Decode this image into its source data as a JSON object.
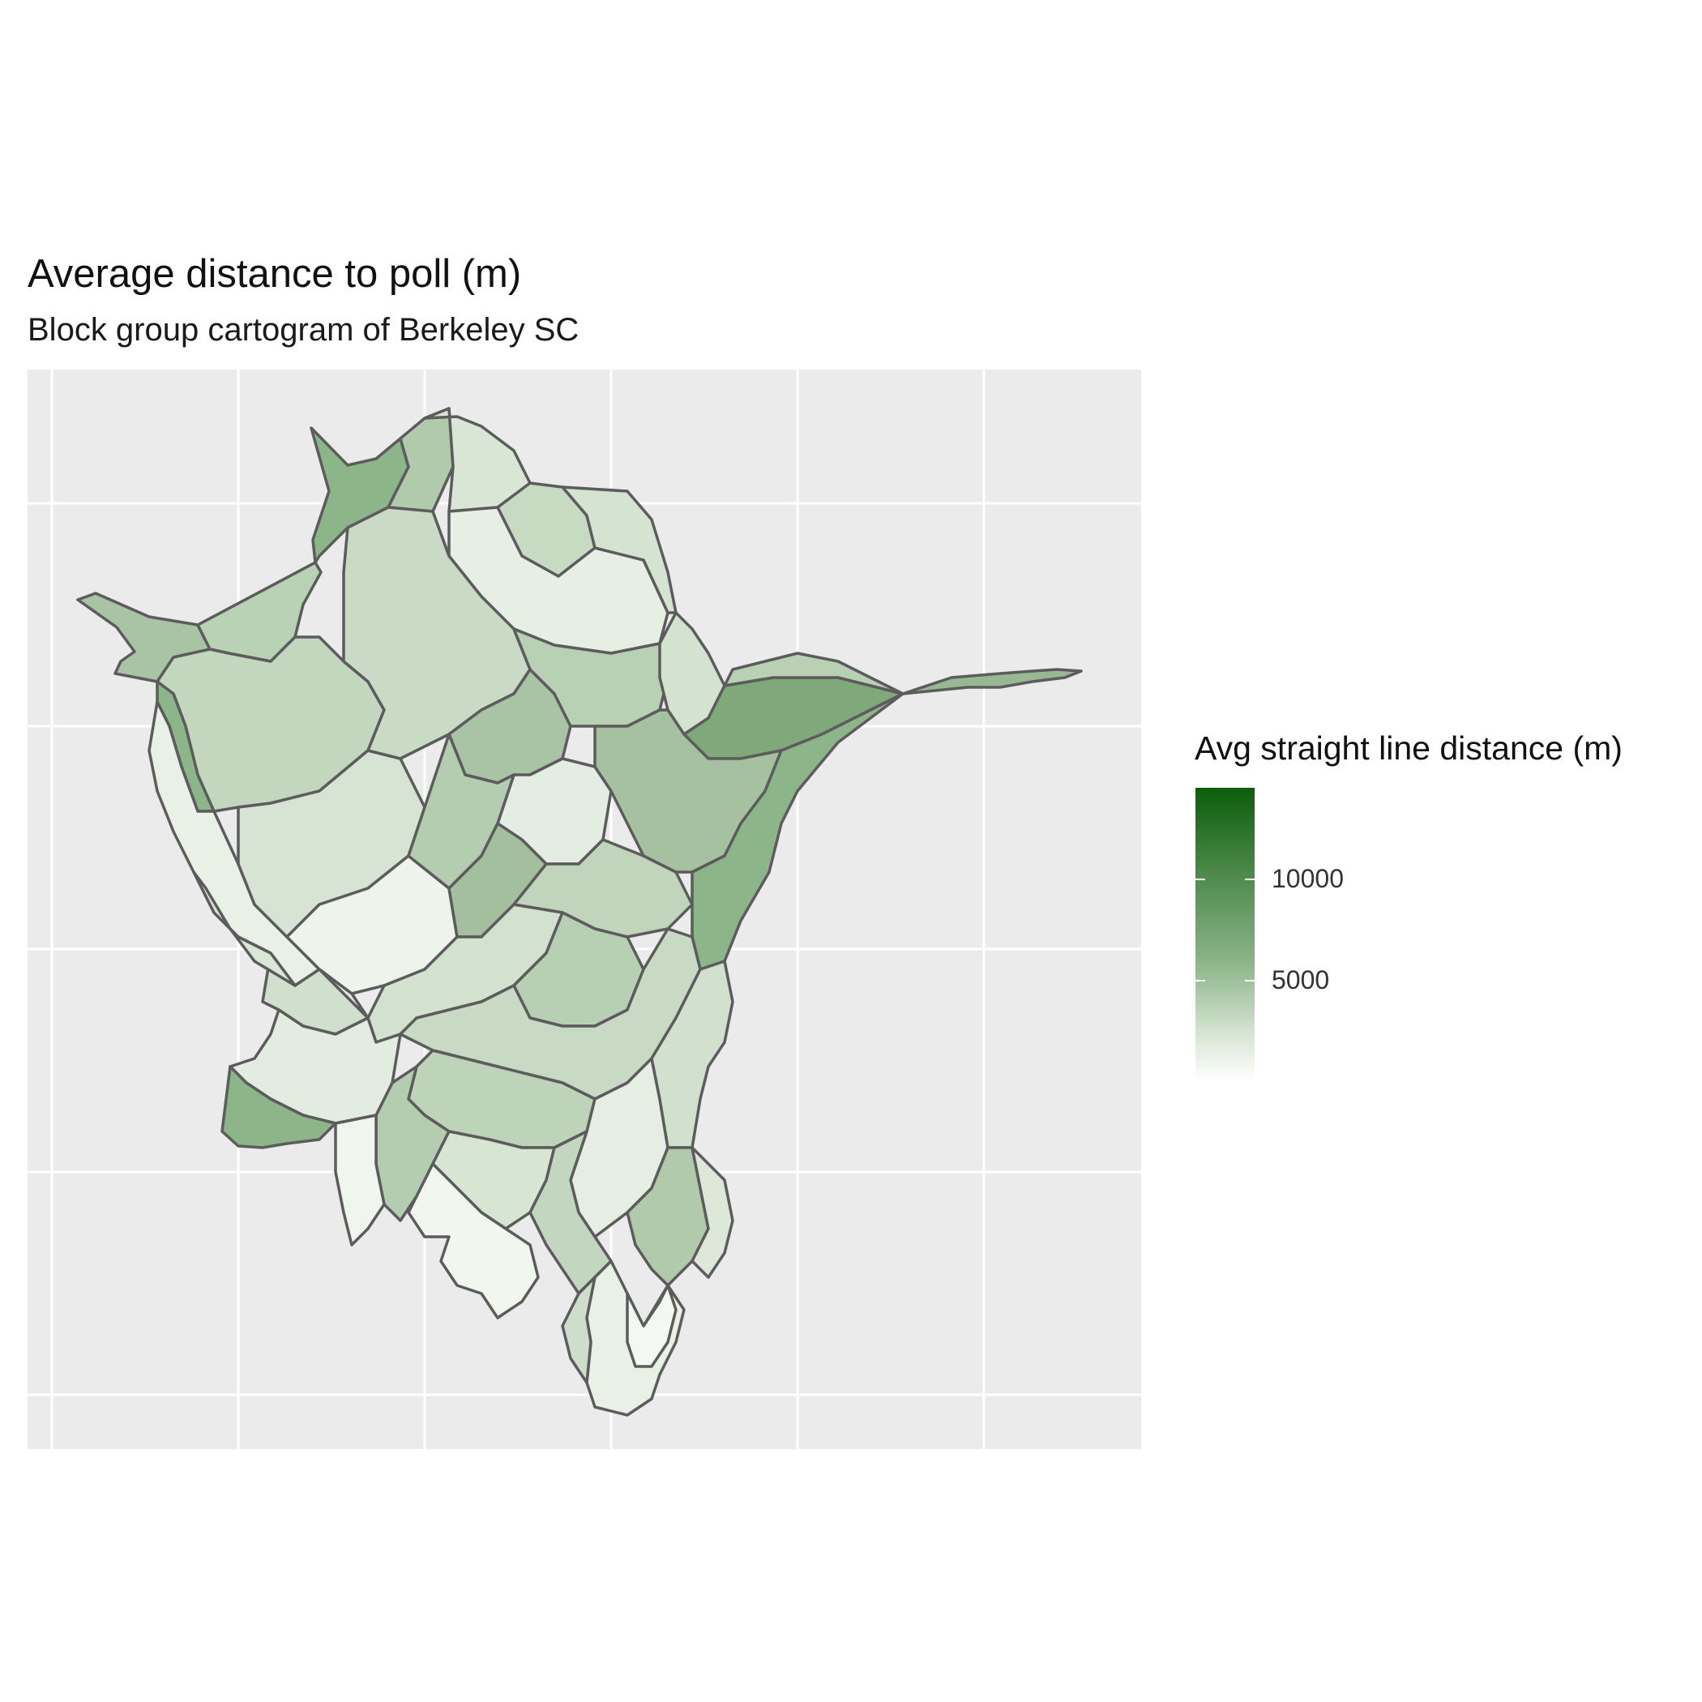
{
  "title": "Average distance to poll (m)",
  "subtitle": "Block group cartogram of Berkeley SC",
  "legend": {
    "title": "Avg straight line distance (m)",
    "labels": [
      "10000",
      "5000"
    ],
    "low_color": "#ffffff",
    "high_color": "#0b5e0b"
  },
  "colors": {
    "panel_background": "#ebebeb",
    "gridline": "#ffffff",
    "region_border": "#5c5c5c"
  },
  "map": {
    "type": "choropleth cartogram",
    "grid": true,
    "axis_labels_shown": false
  }
}
